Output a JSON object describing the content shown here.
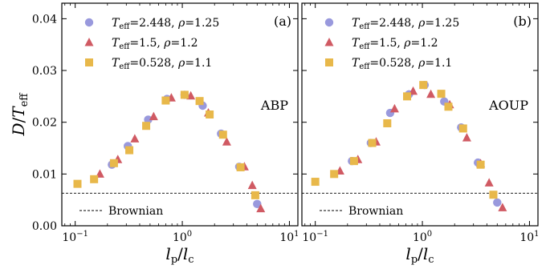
{
  "chart_data": [
    {
      "type": "scatter",
      "panel_label": "(a)",
      "model": "ABP",
      "xscale": "log",
      "xlim": [
        0.075,
        12
      ],
      "ylim": [
        0.0,
        0.043
      ],
      "xticks": [
        {
          "value": 0.1,
          "label": "10⁻¹"
        },
        {
          "value": 1,
          "label": "10⁰"
        },
        {
          "value": 10,
          "label": "10¹"
        }
      ],
      "yticks": [
        {
          "value": 0.0,
          "label": "0.00"
        },
        {
          "value": 0.01,
          "label": "0.01"
        },
        {
          "value": 0.02,
          "label": "0.02"
        },
        {
          "value": 0.03,
          "label": "0.03"
        },
        {
          "value": 0.04,
          "label": "0.04"
        }
      ],
      "reference": {
        "name": "Brownian",
        "y": 0.0063,
        "style": "dashed"
      },
      "legend_position": "top-left",
      "series": [
        {
          "name": "T_eff=2.448, ρ=1.25",
          "marker": "circle",
          "color": "#9999dd",
          "points": [
            [
              0.22,
              0.0118
            ],
            [
              0.31,
              0.0154
            ],
            [
              0.48,
              0.0205
            ],
            [
              0.72,
              0.0245
            ],
            [
              1.05,
              0.0253
            ],
            [
              1.55,
              0.0232
            ],
            [
              2.3,
              0.0178
            ],
            [
              3.4,
              0.0114
            ],
            [
              5.0,
              0.0042
            ]
          ]
        },
        {
          "name": "T_eff=1.5, ρ=1.2",
          "marker": "triangle",
          "color": "#d05a63",
          "points": [
            [
              0.17,
              0.01
            ],
            [
              0.25,
              0.0128
            ],
            [
              0.36,
              0.0168
            ],
            [
              0.54,
              0.0211
            ],
            [
              0.79,
              0.0247
            ],
            [
              1.2,
              0.0251
            ],
            [
              1.75,
              0.0218
            ],
            [
              2.6,
              0.0162
            ],
            [
              3.8,
              0.0114
            ],
            [
              4.5,
              0.0078
            ],
            [
              5.4,
              0.0033
            ]
          ]
        },
        {
          "name": "T_eff=0.528, ρ=1.1",
          "marker": "square",
          "color": "#e8b84a",
          "points": [
            [
              0.105,
              0.0081
            ],
            [
              0.15,
              0.009
            ],
            [
              0.23,
              0.0121
            ],
            [
              0.32,
              0.0146
            ],
            [
              0.46,
              0.0193
            ],
            [
              0.7,
              0.0242
            ],
            [
              1.05,
              0.0253
            ],
            [
              1.45,
              0.0241
            ],
            [
              1.8,
              0.0215
            ],
            [
              2.4,
              0.0176
            ],
            [
              3.5,
              0.0113
            ],
            [
              4.8,
              0.0059
            ]
          ]
        }
      ]
    },
    {
      "type": "scatter",
      "panel_label": "(b)",
      "model": "AOUP",
      "xscale": "log",
      "xlim": [
        0.075,
        12
      ],
      "ylim": [
        0.0,
        0.043
      ],
      "xticks": [
        {
          "value": 0.1,
          "label": "10⁻¹"
        },
        {
          "value": 1,
          "label": "10⁰"
        },
        {
          "value": 10,
          "label": "10¹"
        }
      ],
      "reference": {
        "name": "Brownian",
        "y": 0.0063,
        "style": "dashed"
      },
      "legend_position": "top-left",
      "series": [
        {
          "name": "T_eff=2.448, ρ=1.25",
          "marker": "circle",
          "color": "#9999dd",
          "points": [
            [
              0.22,
              0.0125
            ],
            [
              0.33,
              0.016
            ],
            [
              0.5,
              0.0218
            ],
            [
              0.75,
              0.0254
            ],
            [
              1.05,
              0.0272
            ],
            [
              1.6,
              0.024
            ],
            [
              2.3,
              0.019
            ],
            [
              3.3,
              0.0122
            ],
            [
              5.0,
              0.0045
            ]
          ]
        },
        {
          "name": "T_eff=1.5, ρ=1.2",
          "marker": "triangle",
          "color": "#d05a63",
          "points": [
            [
              0.17,
              0.0106
            ],
            [
              0.25,
              0.0128
            ],
            [
              0.37,
              0.0162
            ],
            [
              0.55,
              0.0226
            ],
            [
              0.82,
              0.026
            ],
            [
              1.2,
              0.0254
            ],
            [
              1.8,
              0.0234
            ],
            [
              2.6,
              0.017
            ],
            [
              3.5,
              0.012
            ],
            [
              4.2,
              0.0083
            ],
            [
              5.6,
              0.0035
            ]
          ]
        },
        {
          "name": "T_eff=0.528, ρ=1.1",
          "marker": "square",
          "color": "#e8b84a",
          "points": [
            [
              0.1,
              0.0085
            ],
            [
              0.15,
              0.01
            ],
            [
              0.23,
              0.0125
            ],
            [
              0.34,
              0.016
            ],
            [
              0.47,
              0.0198
            ],
            [
              0.72,
              0.025
            ],
            [
              1.02,
              0.0272
            ],
            [
              1.5,
              0.0255
            ],
            [
              1.75,
              0.023
            ],
            [
              2.4,
              0.0188
            ],
            [
              3.5,
              0.0118
            ],
            [
              4.6,
              0.006
            ]
          ]
        }
      ]
    }
  ],
  "axes": {
    "ylabel": "D/T_eff",
    "xlabel": "l_p/l_c"
  }
}
